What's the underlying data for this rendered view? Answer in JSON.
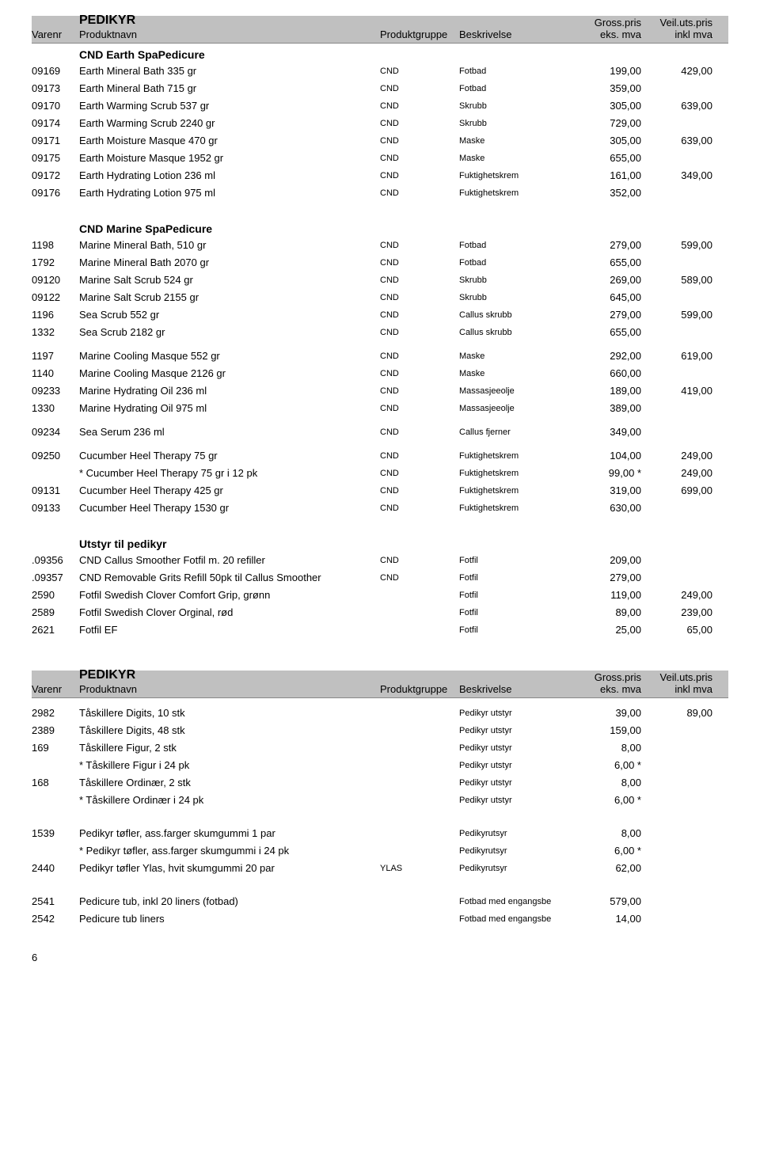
{
  "headers": {
    "title": "PEDIKYR",
    "varenr": "Varenr",
    "name": "Produktnavn",
    "group": "Produktgruppe",
    "desc": "Beskrivelse",
    "gross1": "Gross.pris",
    "gross2": "eks. mva",
    "veil1": "Veil.uts.pris",
    "veil2": "inkl mva"
  },
  "cndEarth": {
    "title": "CND Earth SpaPedicure",
    "rows": [
      {
        "v": "09169",
        "n": "Earth Mineral Bath 335 gr",
        "g": "CND",
        "d": "Fotbad",
        "p1": "199,00",
        "p2": "429,00"
      },
      {
        "v": "09173",
        "n": "Earth Mineral Bath 715 gr",
        "g": "CND",
        "d": "Fotbad",
        "p1": "359,00",
        "p2": ""
      },
      {
        "v": "09170",
        "n": "Earth Warming Scrub 537 gr",
        "g": "CND",
        "d": "Skrubb",
        "p1": "305,00",
        "p2": "639,00"
      },
      {
        "v": "09174",
        "n": "Earth Warming Scrub 2240 gr",
        "g": "CND",
        "d": "Skrubb",
        "p1": "729,00",
        "p2": ""
      },
      {
        "v": "09171",
        "n": "Earth Moisture Masque 470 gr",
        "g": "CND",
        "d": "Maske",
        "p1": "305,00",
        "p2": "639,00"
      },
      {
        "v": "09175",
        "n": "Earth Moisture Masque 1952 gr",
        "g": "CND",
        "d": "Maske",
        "p1": "655,00",
        "p2": ""
      },
      {
        "v": "09172",
        "n": "Earth Hydrating Lotion 236 ml",
        "g": "CND",
        "d": "Fuktighetskrem",
        "p1": "161,00",
        "p2": "349,00"
      },
      {
        "v": "09176",
        "n": "Earth Hydrating Lotion 975 ml",
        "g": "CND",
        "d": "Fuktighetskrem",
        "p1": "352,00",
        "p2": ""
      }
    ]
  },
  "cndMarine": {
    "title": "CND Marine SpaPedicure",
    "rows1": [
      {
        "v": "1198",
        "n": "Marine Mineral Bath, 510 gr",
        "g": "CND",
        "d": "Fotbad",
        "p1": "279,00",
        "p2": "599,00"
      },
      {
        "v": "1792",
        "n": "Marine Mineral Bath 2070 gr",
        "g": "CND",
        "d": "Fotbad",
        "p1": "655,00",
        "p2": ""
      },
      {
        "v": "09120",
        "n": "Marine Salt Scrub 524 gr",
        "g": "CND",
        "d": "Skrubb",
        "p1": "269,00",
        "p2": "589,00"
      },
      {
        "v": "09122",
        "n": "Marine Salt Scrub 2155 gr",
        "g": "CND",
        "d": "Skrubb",
        "p1": "645,00",
        "p2": ""
      },
      {
        "v": "1196",
        "n": "Sea Scrub 552 gr",
        "g": "CND",
        "d": "Callus skrubb",
        "p1": "279,00",
        "p2": "599,00"
      },
      {
        "v": "1332",
        "n": "Sea Scrub 2182 gr",
        "g": "CND",
        "d": "Callus skrubb",
        "p1": "655,00",
        "p2": ""
      }
    ],
    "rows2": [
      {
        "v": "1197",
        "n": "Marine Cooling Masque 552 gr",
        "g": "CND",
        "d": "Maske",
        "p1": "292,00",
        "p2": "619,00"
      },
      {
        "v": "1140",
        "n": "Marine Cooling Masque 2126 gr",
        "g": "CND",
        "d": "Maske",
        "p1": "660,00",
        "p2": ""
      },
      {
        "v": "09233",
        "n": "Marine Hydrating Oil 236 ml",
        "g": "CND",
        "d": "Massasjeeolje",
        "p1": "189,00",
        "p2": "419,00"
      },
      {
        "v": "1330",
        "n": "Marine Hydrating Oil 975 ml",
        "g": "CND",
        "d": "Massasjeeolje",
        "p1": "389,00",
        "p2": ""
      }
    ],
    "rows3": [
      {
        "v": "09234",
        "n": "Sea Serum 236 ml",
        "g": "CND",
        "d": "Callus fjerner",
        "p1": "349,00",
        "p2": ""
      }
    ],
    "rows4": [
      {
        "v": "09250",
        "n": "Cucumber Heel Therapy 75 gr",
        "g": "CND",
        "d": "Fuktighetskrem",
        "p1": "104,00",
        "p2": "249,00"
      },
      {
        "v": "",
        "n": "* Cucumber Heel Therapy 75 gr i 12 pk",
        "g": "CND",
        "d": "Fuktighetskrem",
        "p1": "99,00 *",
        "p2": "249,00"
      },
      {
        "v": "09131",
        "n": "Cucumber Heel Therapy 425 gr",
        "g": "CND",
        "d": "Fuktighetskrem",
        "p1": "319,00",
        "p2": "699,00"
      },
      {
        "v": "09133",
        "n": "Cucumber Heel Therapy 1530 gr",
        "g": "CND",
        "d": "Fuktighetskrem",
        "p1": "630,00",
        "p2": ""
      }
    ]
  },
  "utstyr": {
    "title": "Utstyr til pedikyr",
    "rows": [
      {
        "v": ".09356",
        "n": "CND Callus Smoother Fotfil m. 20 refiller",
        "g": "CND",
        "d": "Fotfil",
        "p1": "209,00",
        "p2": ""
      },
      {
        "v": ".09357",
        "n": "CND Removable Grits Refill 50pk til Callus Smoother",
        "g": "CND",
        "d": "Fotfil",
        "p1": "279,00",
        "p2": ""
      },
      {
        "v": "2590",
        "n": "Fotfil Swedish Clover Comfort Grip, grønn",
        "g": "",
        "d": "Fotfil",
        "p1": "119,00",
        "p2": "249,00"
      },
      {
        "v": "2589",
        "n": "Fotfil Swedish Clover Orginal, rød",
        "g": "",
        "d": "Fotfil",
        "p1": "89,00",
        "p2": "239,00"
      },
      {
        "v": "2621",
        "n": "Fotfil EF",
        "g": "",
        "d": "Fotfil",
        "p1": "25,00",
        "p2": "65,00"
      }
    ]
  },
  "section2": {
    "rows1": [
      {
        "v": "2982",
        "n": "Tåskillere Digits, 10 stk",
        "g": "",
        "d": "Pedikyr utstyr",
        "p1": "39,00",
        "p2": "89,00"
      },
      {
        "v": "2389",
        "n": "Tåskillere Digits, 48 stk",
        "g": "",
        "d": "Pedikyr utstyr",
        "p1": "159,00",
        "p2": ""
      },
      {
        "v": "169",
        "n": "Tåskillere Figur, 2 stk",
        "g": "",
        "d": "Pedikyr utstyr",
        "p1": "8,00",
        "p2": ""
      },
      {
        "v": "",
        "n": "* Tåskillere Figur i 24 pk",
        "g": "",
        "d": "Pedikyr utstyr",
        "p1": "6,00 *",
        "p2": ""
      },
      {
        "v": "168",
        "n": "Tåskillere Ordinær, 2 stk",
        "g": "",
        "d": "Pedikyr utstyr",
        "p1": "8,00",
        "p2": ""
      },
      {
        "v": "",
        "n": "* Tåskillere Ordinær i 24 pk",
        "g": "",
        "d": "Pedikyr utstyr",
        "p1": "6,00 *",
        "p2": ""
      }
    ],
    "rows2": [
      {
        "v": "1539",
        "n": "Pedikyr tøfler, ass.farger skumgummi 1 par",
        "g": "",
        "d": "Pedikyrutsyr",
        "p1": "8,00",
        "p2": ""
      },
      {
        "v": "",
        "n": "* Pedikyr tøfler, ass.farger skumgummi i 24 pk",
        "g": "",
        "d": "Pedikyrutsyr",
        "p1": "6,00 *",
        "p2": ""
      },
      {
        "v": "2440",
        "n": "Pedikyr tøfler Ylas, hvit skumgummi 20 par",
        "g": "YLAS",
        "d": "Pedikyrutsyr",
        "p1": "62,00",
        "p2": ""
      }
    ],
    "rows3": [
      {
        "v": "2541",
        "n": "Pedicure tub, inkl 20 liners (fotbad)",
        "g": "",
        "d": "Fotbad med engangsbe",
        "p1": "579,00",
        "p2": ""
      },
      {
        "v": "2542",
        "n": "Pedicure tub liners",
        "g": "",
        "d": "Fotbad med engangsbe",
        "p1": "14,00",
        "p2": ""
      }
    ]
  },
  "pagenum": "6"
}
